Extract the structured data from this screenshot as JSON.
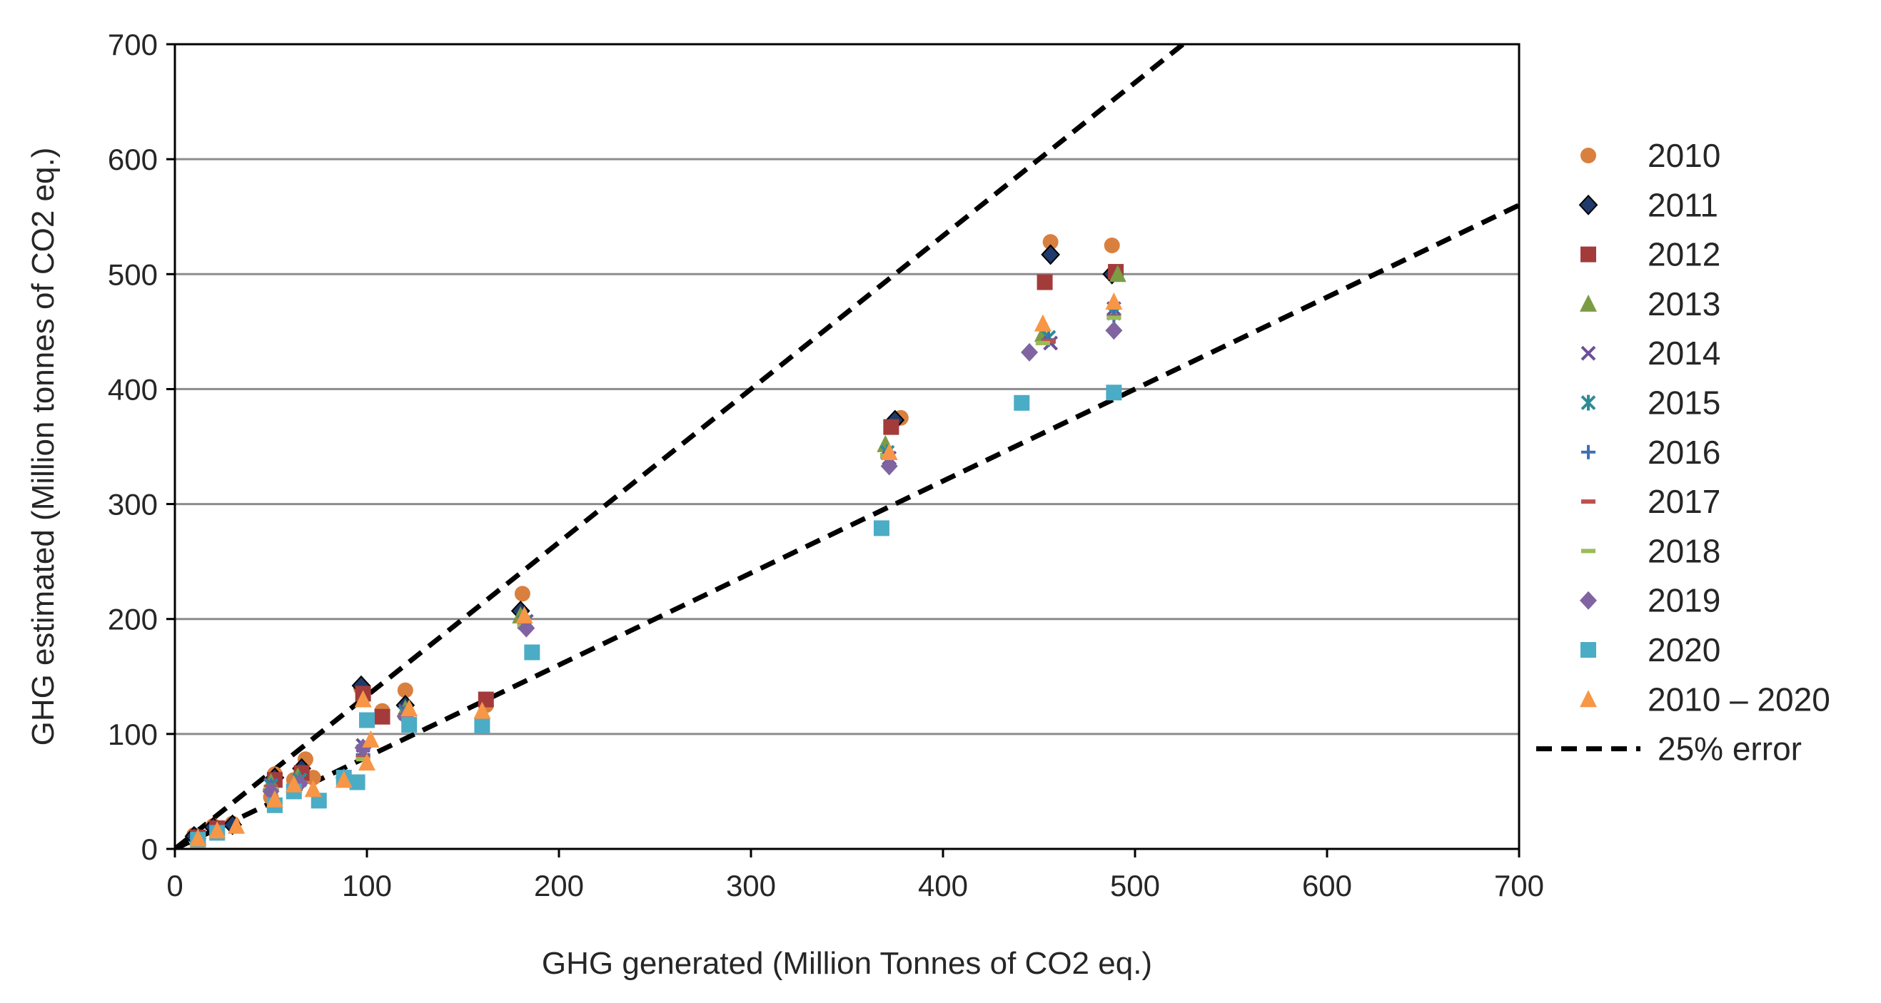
{
  "chart_data": {
    "type": "scatter",
    "title": "",
    "xlabel": "GHG generated (Million Tonnes of CO2 eq.)",
    "ylabel": "GHG estimated (Million tonnes of CO2 eq.)",
    "xlim": [
      0,
      700
    ],
    "ylim": [
      0,
      700
    ],
    "xticks": [
      0,
      100,
      200,
      300,
      400,
      500,
      600,
      700
    ],
    "yticks": [
      0,
      100,
      200,
      300,
      400,
      500,
      600,
      700
    ],
    "xtick_labels": [
      "0",
      "100",
      "200",
      "300",
      "400",
      "500",
      "600",
      "700"
    ],
    "ytick_labels": [
      "0",
      "100",
      "200",
      "300",
      "400",
      "500",
      "600",
      "700"
    ],
    "grid": "horizontal",
    "legend_position": "right",
    "series": [
      {
        "name": "2010",
        "marker": "circle",
        "color": "#D9803F",
        "x": [
          10,
          20,
          30,
          50,
          52,
          62,
          68,
          72,
          97,
          108,
          120,
          162,
          181,
          378,
          456,
          488
        ],
        "y": [
          12,
          20,
          22,
          45,
          65,
          60,
          78,
          62,
          140,
          120,
          138,
          125,
          222,
          375,
          528,
          525
        ]
      },
      {
        "name": "2011",
        "marker": "diamond",
        "color": "#1F3A6B",
        "x": [
          10,
          20,
          30,
          52,
          66,
          97,
          120,
          180,
          375,
          456,
          488
        ],
        "y": [
          11,
          19,
          21,
          62,
          70,
          142,
          125,
          207,
          373,
          517,
          500
        ]
      },
      {
        "name": "2012",
        "marker": "square",
        "color": "#A33B3B",
        "x": [
          12,
          22,
          52,
          66,
          98,
          108,
          162,
          373,
          453,
          490
        ],
        "y": [
          10,
          18,
          60,
          66,
          135,
          115,
          130,
          367,
          493,
          502
        ]
      },
      {
        "name": "2013",
        "marker": "triangle",
        "color": "#7B9C45",
        "x": [
          12,
          50,
          64,
          98,
          120,
          180,
          370,
          452,
          491
        ],
        "y": [
          10,
          58,
          63,
          130,
          122,
          203,
          352,
          448,
          500
        ]
      },
      {
        "name": "2014",
        "marker": "x",
        "color": "#6E4E99",
        "x": [
          12,
          50,
          65,
          98,
          120,
          183,
          372,
          456,
          489
        ],
        "y": [
          9,
          56,
          60,
          90,
          120,
          198,
          340,
          440,
          470
        ]
      },
      {
        "name": "2015",
        "marker": "star",
        "color": "#2E8C96",
        "x": [
          12,
          50,
          65,
          98,
          120,
          182,
          371,
          455,
          489
        ],
        "y": [
          9,
          55,
          60,
          85,
          118,
          197,
          345,
          445,
          466
        ]
      },
      {
        "name": "2016",
        "marker": "plus",
        "color": "#3F6FB3",
        "x": [
          12,
          50,
          65,
          98,
          120,
          182,
          371,
          455,
          489
        ],
        "y": [
          9,
          54,
          58,
          82,
          117,
          196,
          343,
          443,
          464
        ]
      },
      {
        "name": "2017",
        "marker": "dash",
        "color": "#C0504D",
        "x": [
          12,
          50,
          65,
          98,
          120,
          182,
          371,
          455,
          489
        ],
        "y": [
          9,
          54,
          58,
          80,
          116,
          195,
          342,
          442,
          463
        ]
      },
      {
        "name": "2018",
        "marker": "dash",
        "color": "#9BBB59",
        "x": [
          12,
          50,
          65,
          88,
          98,
          120,
          182,
          371,
          452,
          489
        ],
        "y": [
          9,
          52,
          57,
          60,
          78,
          115,
          194,
          342,
          440,
          462
        ]
      },
      {
        "name": "2019",
        "marker": "diamond",
        "color": "#8064A2",
        "x": [
          12,
          50,
          65,
          88,
          98,
          120,
          183,
          372,
          445,
          489
        ],
        "y": [
          9,
          50,
          57,
          62,
          88,
          115,
          192,
          333,
          432,
          451
        ]
      },
      {
        "name": "2020",
        "marker": "square",
        "color": "#4BACC6",
        "x": [
          12,
          22,
          52,
          62,
          75,
          88,
          95,
          100,
          122,
          160,
          186,
          368,
          441,
          489
        ],
        "y": [
          8,
          14,
          38,
          50,
          42,
          62,
          58,
          112,
          108,
          107,
          171,
          279,
          388,
          397
        ]
      },
      {
        "name": "2010 – 2020",
        "marker": "triangle",
        "color": "#F79646",
        "x": [
          12,
          22,
          32,
          52,
          62,
          72,
          88,
          98,
          100,
          102,
          122,
          160,
          182,
          372,
          452,
          489
        ],
        "y": [
          9,
          16,
          20,
          43,
          56,
          52,
          60,
          130,
          75,
          95,
          122,
          120,
          203,
          345,
          457,
          476
        ]
      }
    ],
    "reference_lines": [
      {
        "name": "25% error",
        "style": "dashed",
        "color": "#000000",
        "slope": 1.3333
      },
      {
        "name": "25% error",
        "style": "dashed",
        "color": "#000000",
        "slope": 0.8
      }
    ]
  }
}
